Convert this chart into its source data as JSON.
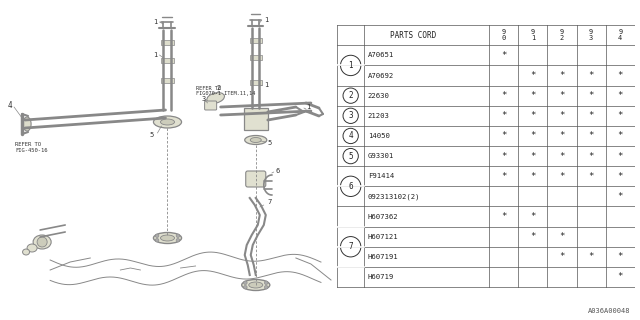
{
  "bg_color": "#ffffff",
  "fig_label": "A036A00048",
  "table": {
    "header_label": "PARTS CORD",
    "years": [
      "9\n0",
      "9\n1",
      "9\n2",
      "9\n3",
      "9\n4"
    ],
    "rows": [
      {
        "num": "1",
        "parts": [
          "A70651",
          "A70692"
        ],
        "marks": [
          [
            "*",
            "",
            "",
            "",
            ""
          ],
          [
            "",
            "*",
            "*",
            "*",
            "*"
          ]
        ]
      },
      {
        "num": "2",
        "parts": [
          "22630"
        ],
        "marks": [
          [
            "*",
            "*",
            "*",
            "*",
            "*"
          ]
        ]
      },
      {
        "num": "3",
        "parts": [
          "21203"
        ],
        "marks": [
          [
            "*",
            "*",
            "*",
            "*",
            "*"
          ]
        ]
      },
      {
        "num": "4",
        "parts": [
          "14050"
        ],
        "marks": [
          [
            "*",
            "*",
            "*",
            "*",
            "*"
          ]
        ]
      },
      {
        "num": "5",
        "parts": [
          "G93301"
        ],
        "marks": [
          [
            "*",
            "*",
            "*",
            "*",
            "*"
          ]
        ]
      },
      {
        "num": "6",
        "parts": [
          "F91414",
          "092313102(2)"
        ],
        "marks": [
          [
            "*",
            "*",
            "*",
            "*",
            "*"
          ],
          [
            "",
            "",
            "",
            "",
            "*"
          ]
        ]
      },
      {
        "num": "7",
        "parts": [
          "H607362",
          "H607121",
          "H607191",
          "H60719"
        ],
        "marks": [
          [
            "*",
            "*",
            "",
            "",
            ""
          ],
          [
            "",
            "*",
            "*",
            "",
            ""
          ],
          [
            "",
            "",
            "*",
            "*",
            "*"
          ],
          [
            "",
            "",
            "",
            "",
            "*"
          ]
        ]
      }
    ]
  },
  "line_color": "#888888",
  "text_color": "#333333"
}
